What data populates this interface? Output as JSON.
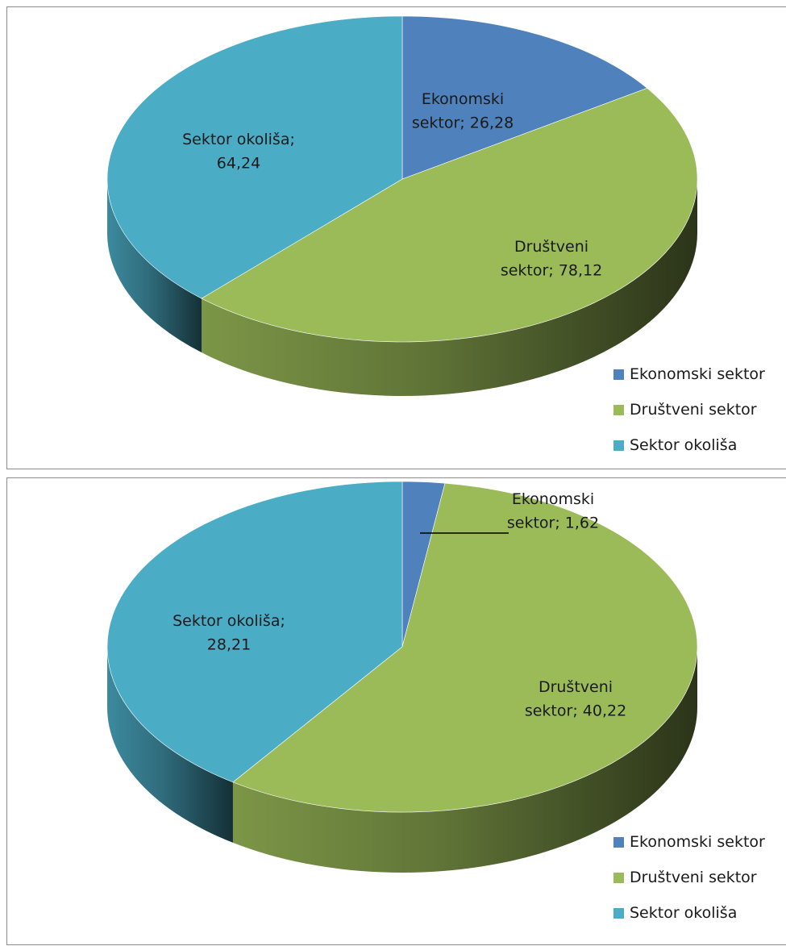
{
  "colors": {
    "ekonomski": "#4f81bd",
    "drustveni": "#9bbb59",
    "okolisa": "#4bacc6"
  },
  "chart_data": [
    {
      "type": "pie",
      "variant": "3d",
      "title": "",
      "categories": [
        "Ekonomski sektor",
        "Društveni sektor",
        "Sektor okoliša"
      ],
      "values": [
        26.28,
        78.12,
        64.24
      ],
      "data_labels": [
        [
          "Ekonomski",
          "sektor; 26,28"
        ],
        [
          "Društveni",
          "sektor; 78,12"
        ],
        [
          "Sektor okoliša;",
          "64,24"
        ]
      ],
      "legend": {
        "placement": "bottom-right",
        "entries": [
          "Ekonomski sektor",
          "Društveni sektor",
          "Sektor okoliša"
        ]
      }
    },
    {
      "type": "pie",
      "variant": "3d",
      "title": "",
      "categories": [
        "Ekonomski sektor",
        "Društveni sektor",
        "Sektor okoliša"
      ],
      "values": [
        1.62,
        40.22,
        28.21
      ],
      "data_labels": [
        [
          "Ekonomski",
          "sektor; 1,62"
        ],
        [
          "Društveni",
          "sektor; 40,22"
        ],
        [
          "Sektor okoliša;",
          "28,21"
        ]
      ],
      "legend": {
        "placement": "bottom-right",
        "entries": [
          "Ekonomski sektor",
          "Društveni sektor",
          "Sektor okoliša"
        ]
      }
    }
  ]
}
